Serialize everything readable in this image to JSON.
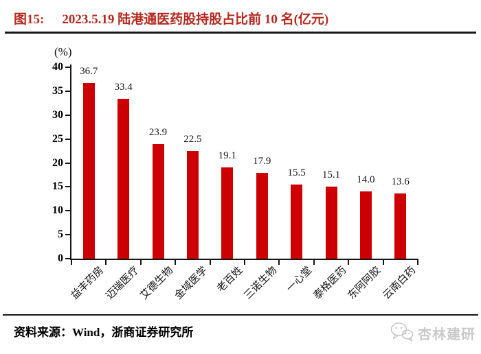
{
  "header": {
    "figure_label": "图15:",
    "title": "2023.5.19 陆港通医药股持股占比前 10 名(亿元)"
  },
  "chart_data": {
    "type": "bar",
    "title": "2023.5.19 陆港通医药股持股占比前 10 名(亿元)",
    "categories": [
      "益丰药房",
      "迈瑞医疗",
      "艾德生物",
      "金域医学",
      "老百姓",
      "三诺生物",
      "一心堂",
      "泰格医药",
      "东阿阿胶",
      "云南白药"
    ],
    "values": [
      36.7,
      33.4,
      23.9,
      22.5,
      19.1,
      17.9,
      15.5,
      15.1,
      14.0,
      13.6
    ],
    "xlabel": "",
    "ylabel": "(%)",
    "ylim": [
      0,
      40
    ],
    "ytick_step": 5,
    "grid": false,
    "legend": false,
    "value_labels": true,
    "bar_color": "#cc0000"
  },
  "footer": {
    "source": "资料来源：Wind，浙商证券研究所",
    "watermark": "杏林建研"
  },
  "colors": {
    "title_red": "#b5291f",
    "bar_red": "#cc0000",
    "axis_black": "#161616",
    "watermark_grey": "#c9c9c9"
  }
}
